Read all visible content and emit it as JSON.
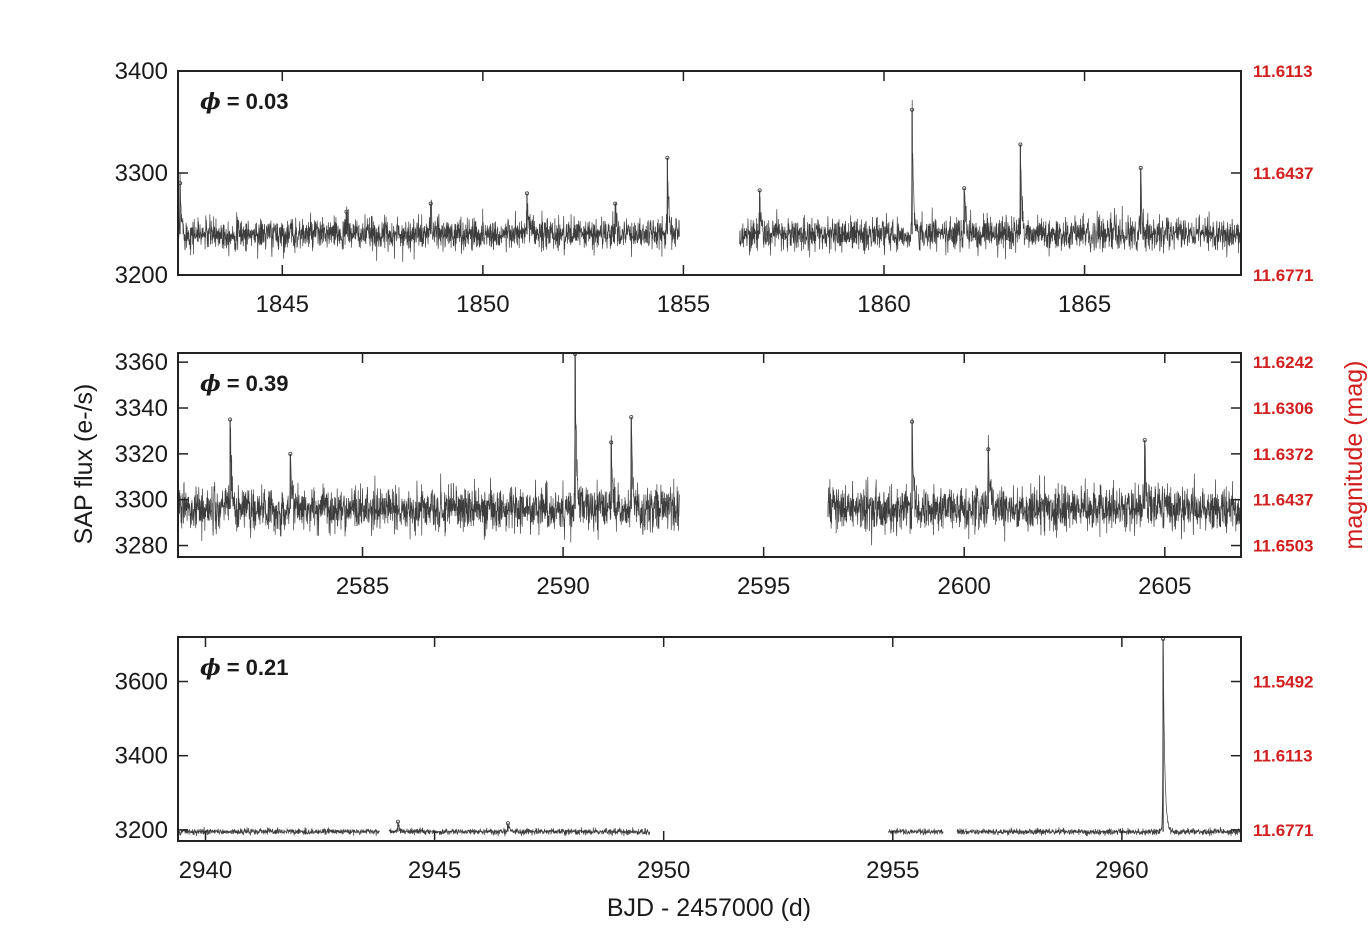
{
  "colors": {
    "data": "#3d3d3d",
    "axis": "#222222",
    "right_axis": "#d21f1f"
  },
  "chart_data": {
    "type": "line",
    "shared": {
      "xlabel": "BJD - 2457000 (d)",
      "ylabel": "SAP flux (e-/s)",
      "ylabel_right": "magnitude (mag)",
      "grid": false,
      "legend": "none"
    },
    "panels": [
      {
        "phase_label": "= 0.03",
        "xlim": [
          1842.4,
          1868.9
        ],
        "ylim": [
          3200,
          3400
        ],
        "xticks": [
          1845,
          1850,
          1855,
          1860,
          1865
        ],
        "yticks": [
          3200,
          3300,
          3400
        ],
        "yticks_right": [
          {
            "flux": 3400,
            "label": "11.6113"
          },
          {
            "flux": 3300,
            "label": "11.6437"
          },
          {
            "flux": 3200,
            "label": "11.6771"
          }
        ],
        "baseline": 3240,
        "noise": 13,
        "segments": [
          [
            1842.4,
            1854.9
          ],
          [
            1856.4,
            1868.9
          ]
        ],
        "flares": [
          {
            "t": 1842.45,
            "peak": 3290
          },
          {
            "t": 1846.6,
            "peak": 3262
          },
          {
            "t": 1848.7,
            "peak": 3270
          },
          {
            "t": 1851.1,
            "peak": 3280
          },
          {
            "t": 1853.3,
            "peak": 3270
          },
          {
            "t": 1854.6,
            "peak": 3315
          },
          {
            "t": 1856.9,
            "peak": 3283
          },
          {
            "t": 1860.7,
            "peak": 3362
          },
          {
            "t": 1862.0,
            "peak": 3285
          },
          {
            "t": 1863.4,
            "peak": 3328
          },
          {
            "t": 1866.4,
            "peak": 3305
          }
        ]
      },
      {
        "phase_label": "= 0.39",
        "xlim": [
          2580.4,
          2606.9
        ],
        "ylim": [
          3275,
          3364
        ],
        "xticks": [
          2585,
          2590,
          2595,
          2600,
          2605
        ],
        "yticks": [
          3280,
          3300,
          3320,
          3340,
          3360
        ],
        "yticks_right": [
          {
            "flux": 3360,
            "label": "11.6242"
          },
          {
            "flux": 3340,
            "label": "11.6306"
          },
          {
            "flux": 3320,
            "label": "11.6372"
          },
          {
            "flux": 3300,
            "label": "11.6437"
          },
          {
            "flux": 3280,
            "label": "11.6503"
          }
        ],
        "baseline": 3296,
        "noise": 8,
        "segments": [
          [
            2580.4,
            2592.9
          ],
          [
            2596.6,
            2606.9
          ]
        ],
        "flares": [
          {
            "t": 2581.7,
            "peak": 3335
          },
          {
            "t": 2583.2,
            "peak": 3320
          },
          {
            "t": 2590.3,
            "peak": 3364
          },
          {
            "t": 2591.2,
            "peak": 3325
          },
          {
            "t": 2591.7,
            "peak": 3336
          },
          {
            "t": 2598.7,
            "peak": 3334
          },
          {
            "t": 2600.6,
            "peak": 3322
          },
          {
            "t": 2604.5,
            "peak": 3326
          }
        ]
      },
      {
        "phase_label": "= 0.21",
        "xlim": [
          2939.4,
          2962.6
        ],
        "ylim": [
          3170,
          3720
        ],
        "xticks": [
          2940,
          2945,
          2950,
          2955,
          2960
        ],
        "yticks": [
          3200,
          3400,
          3600
        ],
        "yticks_right": [
          {
            "flux": 3600,
            "label": "11.5492"
          },
          {
            "flux": 3400,
            "label": "11.6113"
          },
          {
            "flux": 3200,
            "label": "11.6771"
          }
        ],
        "baseline": 3195,
        "noise": 7,
        "segments": [
          [
            2939.4,
            2943.8
          ],
          [
            2944.0,
            2949.7
          ],
          [
            2954.9,
            2956.1
          ],
          [
            2956.4,
            2962.6
          ]
        ],
        "flares": [
          {
            "t": 2944.2,
            "peak": 3222
          },
          {
            "t": 2946.6,
            "peak": 3218
          },
          {
            "t": 2960.9,
            "peak": 3715
          }
        ]
      }
    ]
  }
}
